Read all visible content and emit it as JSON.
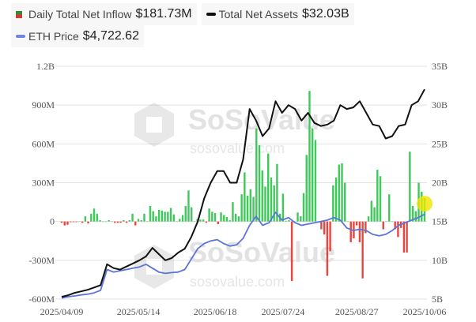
{
  "legend": {
    "inflow_label": "Daily Total Net Inflow",
    "inflow_value": "$181.73M",
    "assets_label": "Total Net Assets",
    "assets_value": "$32.03B",
    "eth_label": "ETH Price",
    "eth_value": "$4,722.62"
  },
  "watermark": "SoSoValue",
  "watermark_sub": "sosovalue.com",
  "colors": {
    "positive": "#3ec95a",
    "negative": "#e8453c",
    "assets": "#111111",
    "eth": "#5b74d6",
    "grid": "#e3e3e3"
  },
  "chart_data": {
    "type": "bar+line",
    "left_axis": {
      "ticks": [
        "1.2B",
        "900M",
        "600M",
        "300M",
        "0",
        "-300M",
        "-600M"
      ],
      "range": [
        -600,
        1200
      ],
      "unit": "M USD"
    },
    "right_axis": {
      "ticks": [
        "35B",
        "30B",
        "25B",
        "20B",
        "15B",
        "10B",
        "5B"
      ],
      "range": [
        5,
        35
      ],
      "unit": "B USD"
    },
    "eth_axis_hidden_range": [
      1459,
      10425
    ],
    "x_ticks": [
      {
        "label": "2025/04/09",
        "index": 0
      },
      {
        "label": "2025/05/14",
        "index": 26
      },
      {
        "label": "2025/06/18",
        "index": 52
      },
      {
        "label": "2025/07/24",
        "index": 75
      },
      {
        "label": "2025/08/27",
        "index": 100
      },
      {
        "label": "2025/10/06",
        "index": 123
      }
    ],
    "series": [
      {
        "name": "Daily Total Net Inflow",
        "type": "bar",
        "values": [
          -10,
          -30,
          -25,
          -5,
          -5,
          -5,
          0,
          -10,
          40,
          -15,
          60,
          100,
          60,
          10,
          0,
          0,
          10,
          0,
          -10,
          -10,
          -10,
          10,
          -10,
          10,
          60,
          -30,
          20,
          10,
          60,
          0,
          120,
          80,
          40,
          90,
          85,
          75,
          75,
          105,
          55,
          0,
          20,
          50,
          120,
          240,
          110,
          0,
          20,
          15,
          15,
          -10,
          100,
          75,
          65,
          -20,
          70,
          50,
          35,
          10,
          150,
          60,
          40,
          210,
          380,
          200,
          250,
          190,
          720,
          590,
          395,
          270,
          525,
          340,
          280,
          445,
          60,
          215,
          5,
          10,
          -460,
          0,
          70,
          40,
          220,
          515,
          1010,
          720,
          630,
          0,
          -60,
          -100,
          -420,
          -230,
          280,
          340,
          440,
          450,
          300,
          0,
          -160,
          -130,
          -30,
          -160,
          -440,
          -90,
          40,
          160,
          110,
          400,
          350,
          -60,
          0,
          210,
          0,
          -60,
          -120,
          -50,
          -240,
          -240,
          540,
          120,
          80,
          300,
          230,
          182
        ]
      },
      {
        "name": "Total Net Assets",
        "type": "line",
        "axis": "right",
        "values": [
          5.3,
          5.5,
          5.8,
          6.0,
          6.2,
          6.5,
          6.8,
          9.5,
          9.0,
          8.8,
          9.2,
          9.6,
          10.0,
          10.5,
          11.6,
          10.8,
          10.0,
          10.3,
          11.0,
          11.5,
          13.0,
          15.0,
          18.0,
          20.0,
          21.5,
          21.5,
          20.0,
          20.0,
          23.0,
          29.5,
          28.0,
          26.0,
          27.0,
          30.5,
          29.0,
          30.0,
          29.5,
          28.0,
          29.0,
          27.7,
          27.3,
          27.5,
          28.0,
          30.0,
          29.5,
          29.7,
          30.5,
          29.0,
          27.5,
          27.3,
          25.7,
          26.0,
          27.3,
          27.5,
          30.0,
          30.5,
          32.03
        ]
      },
      {
        "name": "ETH Price",
        "type": "line",
        "axis": "hidden",
        "values": [
          1500,
          1550,
          1580,
          1620,
          1650,
          1700,
          1800,
          2600,
          2500,
          2550,
          2600,
          2650,
          2700,
          2800,
          2650,
          2500,
          2450,
          2480,
          2500,
          2600,
          3000,
          3400,
          3600,
          3700,
          3750,
          3600,
          3500,
          3550,
          3800,
          4300,
          4650,
          4300,
          4400,
          4800,
          4500,
          4600,
          4400,
          4300,
          4350,
          4400,
          4450,
          4500,
          4600,
          4500,
          4200,
          4100,
          4150,
          4100,
          3950,
          3900,
          3950,
          4100,
          4300,
          4400,
          4500,
          4600,
          4722.62
        ]
      }
    ]
  }
}
